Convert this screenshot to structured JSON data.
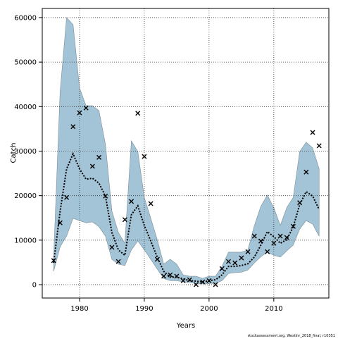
{
  "chart_data": {
    "type": "line",
    "x_label": "Years",
    "y_label": "Catch",
    "footnote": "stockassessment.org, WestInr_2018_final, r10351",
    "x": [
      1976,
      1977,
      1978,
      1979,
      1980,
      1981,
      1982,
      1983,
      1984,
      1985,
      1986,
      1987,
      1988,
      1989,
      1990,
      1991,
      1992,
      1993,
      1994,
      1995,
      1996,
      1997,
      1998,
      1999,
      2000,
      2001,
      2002,
      2003,
      2004,
      2005,
      2006,
      2007,
      2008,
      2009,
      2010,
      2011,
      2012,
      2013,
      2014,
      2015,
      2016,
      2017
    ],
    "band": {
      "color": "#a3c4d6",
      "lower": [
        3000,
        8500,
        10900,
        14900,
        14400,
        13900,
        14100,
        13000,
        10900,
        5700,
        4600,
        4300,
        7800,
        9800,
        7800,
        5700,
        3500,
        1400,
        900,
        900,
        600,
        500,
        300,
        200,
        300,
        300,
        900,
        2500,
        2700,
        2800,
        3300,
        4900,
        6300,
        7300,
        6600,
        6200,
        7600,
        8900,
        12500,
        14400,
        13600,
        10900
      ],
      "upper": [
        6200,
        43400,
        60000,
        58400,
        44200,
        40200,
        40200,
        39100,
        31500,
        16500,
        11700,
        9300,
        32300,
        29900,
        19600,
        14900,
        10100,
        4600,
        5700,
        4600,
        2200,
        1900,
        1900,
        1400,
        1900,
        1900,
        4100,
        7300,
        7300,
        7300,
        7800,
        13300,
        17600,
        20100,
        17300,
        13300,
        17300,
        19600,
        29900,
        32000,
        30700,
        26000
      ]
    },
    "fit": {
      "color": "#000000",
      "values": [
        4900,
        16500,
        26000,
        29400,
        26000,
        23700,
        23900,
        22800,
        19900,
        11700,
        7800,
        6600,
        15700,
        17700,
        13300,
        9800,
        6200,
        3000,
        1700,
        1700,
        1300,
        900,
        800,
        600,
        900,
        1100,
        2200,
        4100,
        4100,
        4300,
        4700,
        6200,
        8900,
        11900,
        10800,
        9300,
        10100,
        13000,
        18000,
        20900,
        19900,
        16900
      ]
    },
    "observed": {
      "color": "#000000",
      "values": [
        5400,
        13900,
        19600,
        35500,
        38600,
        39700,
        26600,
        28600,
        19900,
        8400,
        5200,
        14600,
        18700,
        38500,
        28800,
        18200,
        5700,
        1900,
        2200,
        1900,
        900,
        1100,
        0,
        600,
        900,
        0,
        3600,
        5200,
        4900,
        6000,
        7400,
        10900,
        9800,
        7400,
        9300,
        10900,
        10600,
        13100,
        18400,
        25300,
        34200,
        31200
      ]
    },
    "xlim": [
      1974.24,
      2018.5
    ],
    "ylim": [
      -3000,
      62050
    ],
    "xticks": [
      1980,
      1990,
      2000,
      2010
    ],
    "yticks": [
      0,
      10000,
      20000,
      30000,
      40000,
      50000,
      60000
    ],
    "grid": true
  }
}
